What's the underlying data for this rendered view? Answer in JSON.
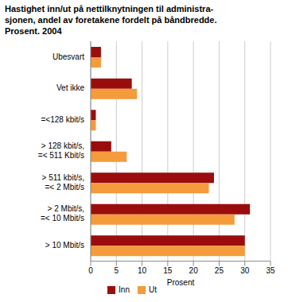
{
  "chart_data": {
    "type": "bar",
    "orientation": "horizontal",
    "title": "Hastighet inn/ut på nettilknytningen til administra-\nsjonen, andel av foretakene fordelt på båndbredde.\nProsent. 2004",
    "x_label": "Prosent",
    "categories": [
      "Ubesvart",
      "Vet ikke",
      "=<128 kbit/s",
      "> 128 kbit/s, =< 511 Kbit/s",
      "> 511 kbit/s, =< 2 Mbit/s",
      "> 2 Mbit/s, =< 10 Mbit/s",
      "> 10 Mbit/s"
    ],
    "series": [
      {
        "name": "Inn",
        "color": "#9b0d0d",
        "values": [
          2,
          8,
          1,
          4,
          24,
          31,
          30
        ]
      },
      {
        "name": "Ut",
        "color": "#f49b3c",
        "values": [
          2,
          9,
          1,
          7,
          23,
          28,
          30
        ]
      }
    ],
    "xlim": [
      0,
      35
    ],
    "xticks": [
      0,
      5,
      10,
      15,
      20,
      25,
      30,
      35
    ],
    "grid": true,
    "legend": "bottom"
  }
}
